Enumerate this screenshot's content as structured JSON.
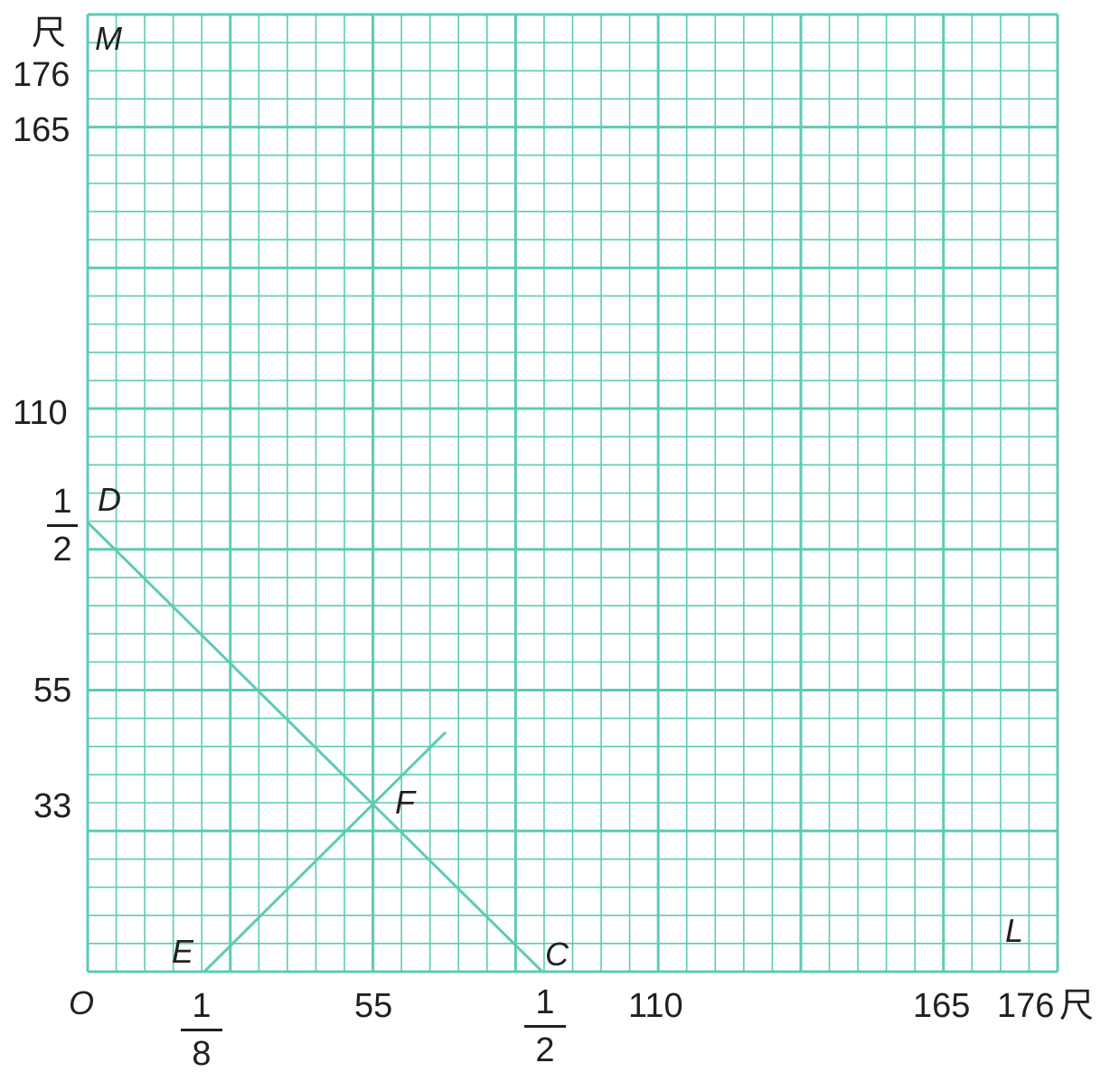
{
  "colors": {
    "grid": "#5ccbb5",
    "text": "#231f20"
  },
  "grid": {
    "minor_divisions_x": 34,
    "minor_divisions_y": 34,
    "major_every": 5
  },
  "axes": {
    "origin": "O",
    "unit": "尺",
    "x_ticks": [
      "55",
      "110",
      "165",
      "176"
    ],
    "x_fraction_ticks": [
      {
        "num": "1",
        "den": "8"
      },
      {
        "num": "1",
        "den": "2"
      }
    ],
    "y_ticks": [
      "176",
      "165",
      "110",
      "55",
      "33"
    ],
    "y_fraction_ticks": [
      {
        "num": "1",
        "den": "2"
      }
    ]
  },
  "points": {
    "M": "M",
    "L": "L",
    "D": "D",
    "E": "E",
    "C": "C",
    "F": "F"
  }
}
